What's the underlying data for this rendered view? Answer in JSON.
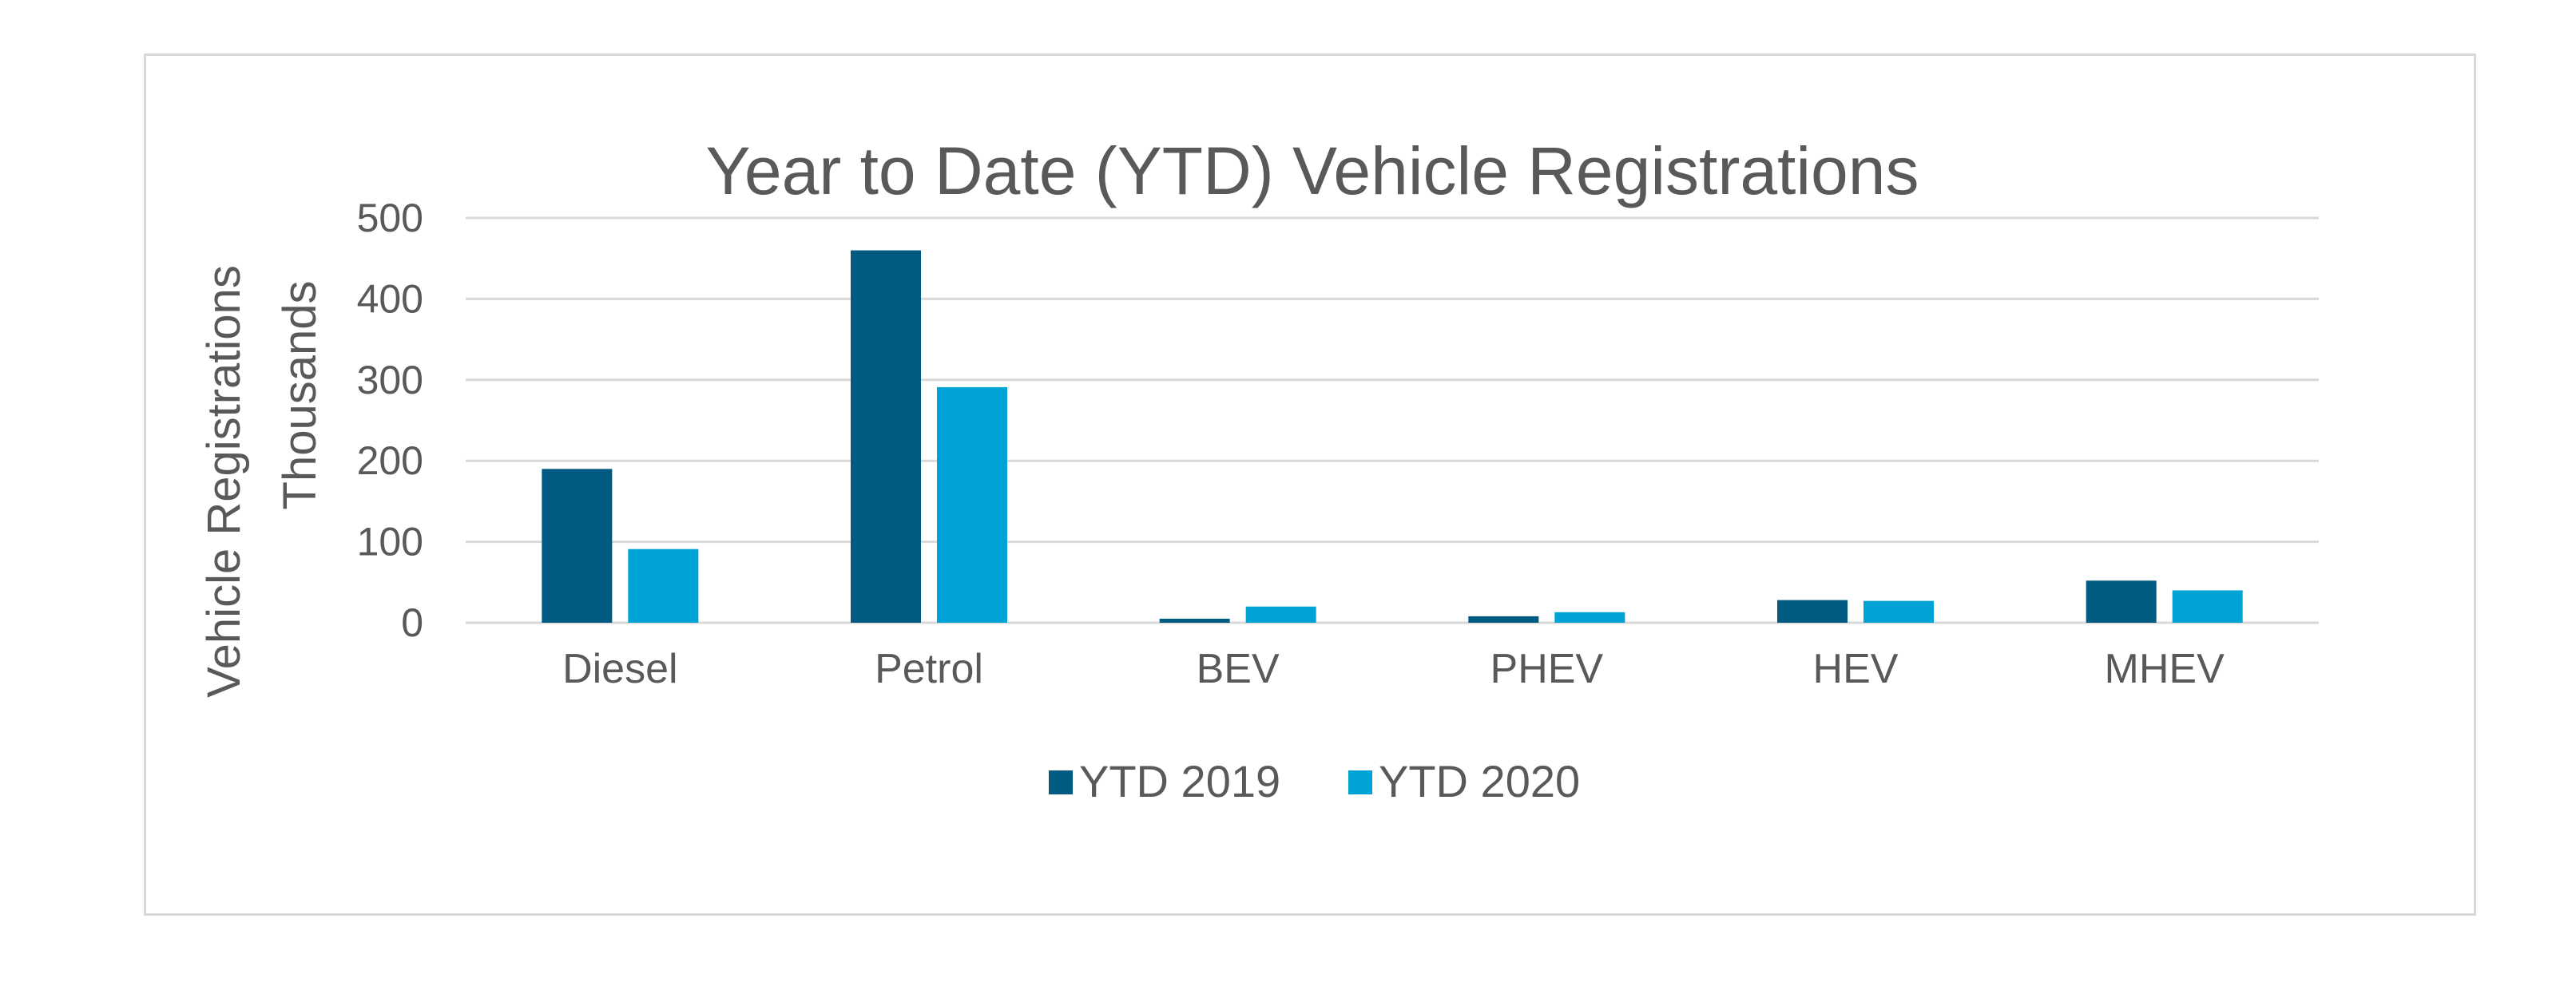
{
  "chart_data": {
    "type": "bar",
    "title": "Year to Date (YTD) Vehicle Registrations",
    "ylabel": "Vehicle Registrations",
    "yunit_label": "Thousands",
    "xlabel": "",
    "categories": [
      "Diesel",
      "Petrol",
      "BEV",
      "PHEV",
      "HEV",
      "MHEV"
    ],
    "series": [
      {
        "name": "YTD  2019",
        "color": "#005a82",
        "values": [
          190,
          460,
          5,
          8,
          28,
          52
        ]
      },
      {
        "name": "YTD 2020",
        "color": "#00a3d6",
        "values": [
          91,
          291,
          20,
          13,
          27,
          40
        ]
      }
    ],
    "ylim": [
      0,
      500
    ],
    "yticks": [
      0,
      100,
      200,
      300,
      400,
      500
    ],
    "grid": true,
    "legend_position": "bottom"
  }
}
